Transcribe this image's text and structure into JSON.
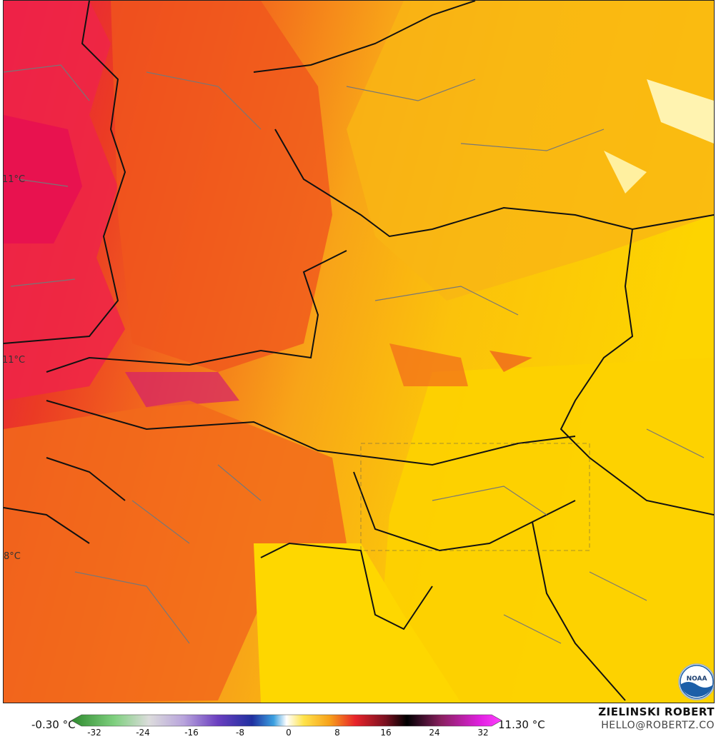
{
  "map": {
    "contour_labels": [
      "11°C",
      "11°C",
      "8°C"
    ]
  },
  "legend": {
    "min_label": "-0.30 °C",
    "max_label": "11.30 °C",
    "ticks": [
      "-32",
      "-24",
      "-16",
      "-8",
      "0",
      "8",
      "16",
      "24",
      "32"
    ]
  },
  "credit": {
    "name": "ZIELINSKI ROBERT",
    "email": "HELLO@ROBERTZ.CO"
  },
  "logo": {
    "text": "NOAA"
  },
  "colors": {
    "hot": "#e8232a",
    "warm": "#f26a1b",
    "mild": "#f7a11a",
    "cool": "#fcd400",
    "pale": "#fff3a0",
    "borders_country": "#111111",
    "borders_region": "#666666"
  }
}
